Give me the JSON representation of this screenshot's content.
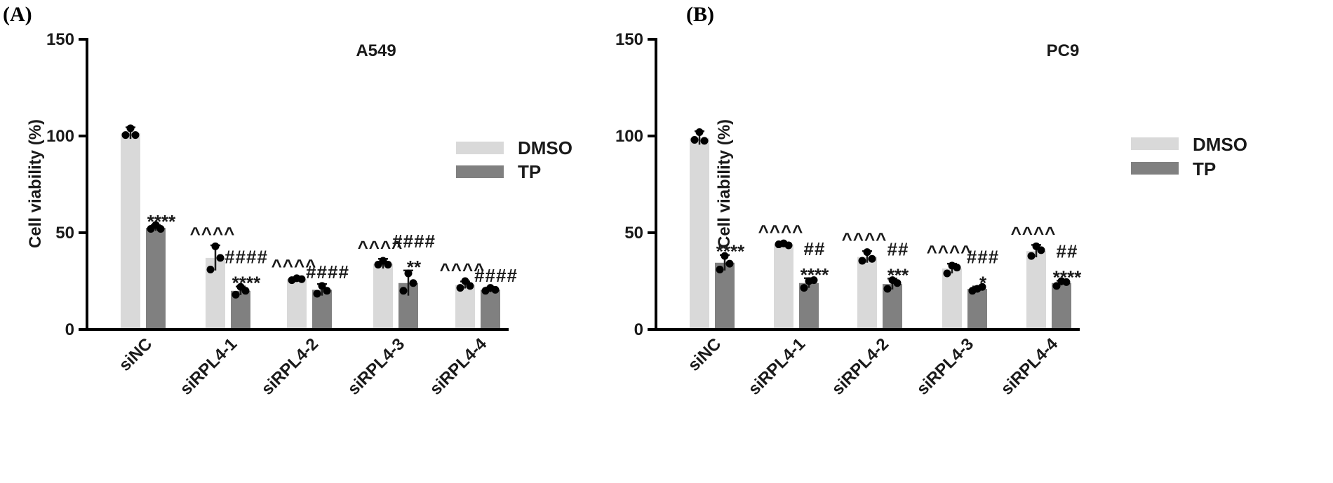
{
  "colors": {
    "dmso": "#d9d9d9",
    "tp": "#808080",
    "axis": "#000000",
    "dot": "#000000"
  },
  "chart_data": [
    {
      "panel_label": "(A)",
      "type": "bar",
      "title": "A549",
      "ylabel": "Cell viability (%)",
      "ylim": [
        0,
        150
      ],
      "yticks": [
        "0",
        "50",
        "100",
        "150"
      ],
      "categories": [
        "siNC",
        "siRPL4-1",
        "siRPL4-2",
        "siRPL4-3",
        "siRPL4-4"
      ],
      "legend": [
        "DMSO",
        "TP"
      ],
      "series": [
        {
          "name": "DMSO",
          "values": [
            101.5,
            37,
            26,
            34,
            23
          ],
          "errors": [
            3,
            6.5,
            0.8,
            2.5,
            1.8
          ],
          "points": [
            [
              100.5,
              104,
              100.5
            ],
            [
              31,
              43,
              37
            ],
            [
              25.5,
              26.5,
              26
            ],
            [
              33.5,
              35.5,
              33.5
            ],
            [
              21.5,
              25,
              22.5
            ]
          ],
          "annotations": [
            "",
            "^^^^",
            "^^^^",
            "^^^^",
            "^^^^"
          ]
        },
        {
          "name": "TP",
          "values": [
            52.5,
            20,
            20.5,
            24,
            20.5
          ],
          "errors": [
            1.5,
            2.2,
            3,
            6.5,
            1.2
          ],
          "points": [
            [
              52,
              54,
              52
            ],
            [
              18,
              22,
              20
            ],
            [
              18.5,
              22.5,
              20
            ],
            [
              20,
              29,
              24
            ],
            [
              20,
              21.5,
              20.5
            ]
          ],
          "annotations": [
            "****",
            "####\n****",
            "####",
            "####\n**",
            "####"
          ]
        }
      ]
    },
    {
      "panel_label": "(B)",
      "type": "bar",
      "title": "PC9",
      "ylabel": "Cell viability (%)",
      "ylim": [
        0,
        150
      ],
      "yticks": [
        "0",
        "50",
        "100",
        "150"
      ],
      "categories": [
        "siNC",
        "siRPL4-1",
        "siRPL4-2",
        "siRPL4-3",
        "siRPL4-4"
      ],
      "legend": [
        "DMSO",
        "TP"
      ],
      "series": [
        {
          "name": "DMSO",
          "values": [
            99,
            44,
            37.5,
            31.5,
            40.5
          ],
          "errors": [
            3.5,
            0.6,
            3,
            2.5,
            3.2
          ],
          "points": [
            [
              98,
              102,
              97.5
            ],
            [
              44,
              44.5,
              43.5
            ],
            [
              35.5,
              40,
              36.5
            ],
            [
              29,
              33,
              32
            ],
            [
              38,
              43,
              41
            ]
          ],
          "annotations": [
            "",
            "^^^^",
            "^^^^",
            "^^^^",
            "^^^^"
          ]
        },
        {
          "name": "TP",
          "values": [
            34.5,
            24,
            23.5,
            21,
            24
          ],
          "errors": [
            4,
            2.5,
            2.8,
            1.2,
            1.2
          ],
          "points": [
            [
              31,
              38,
              34
            ],
            [
              21.5,
              25,
              25.5
            ],
            [
              21,
              25.5,
              24
            ],
            [
              20,
              21,
              22
            ],
            [
              22.5,
              25,
              24.5
            ]
          ],
          "annotations": [
            "****",
            "##\n****",
            "##\n***",
            "###\n*",
            "##\n****"
          ]
        }
      ]
    }
  ]
}
